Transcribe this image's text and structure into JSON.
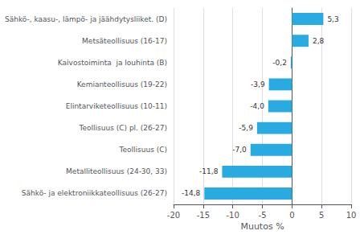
{
  "chart_data": {
    "type": "bar",
    "orientation": "horizontal",
    "categories": [
      "Sähkö- ja elektroniikkateollisuus (26-27)",
      "Metalliteollisuus (24-30, 33)",
      "Teollisuus (C)",
      "Teollisuus (C) pl. (26-27)",
      "Elintarviketeollisuus (10-11)",
      "Kemianteollisuus (19-22)",
      "Kaivostoiminta  ja louhinta (B)",
      "Metsäteollisuus (16-17)",
      "Sähkö-, kaasu-, lämpö- ja jäähdytysliiket. (D)"
    ],
    "values": [
      -14.8,
      -11.8,
      -7.0,
      -5.9,
      -4.0,
      -3.9,
      -0.2,
      2.8,
      5.3
    ],
    "value_labels": [
      "-14,8",
      "-11,8",
      "-7,0",
      "-5,9",
      "-4,0",
      "-3,9",
      "-0,2",
      "2,8",
      "5,3"
    ],
    "data_labels": true,
    "color": "#29abe2",
    "xlabel": "Muutos %",
    "xlim": [
      -20,
      10
    ],
    "xticks": [
      -20,
      -15,
      -10,
      -5,
      0,
      5,
      10
    ],
    "grid": true
  }
}
